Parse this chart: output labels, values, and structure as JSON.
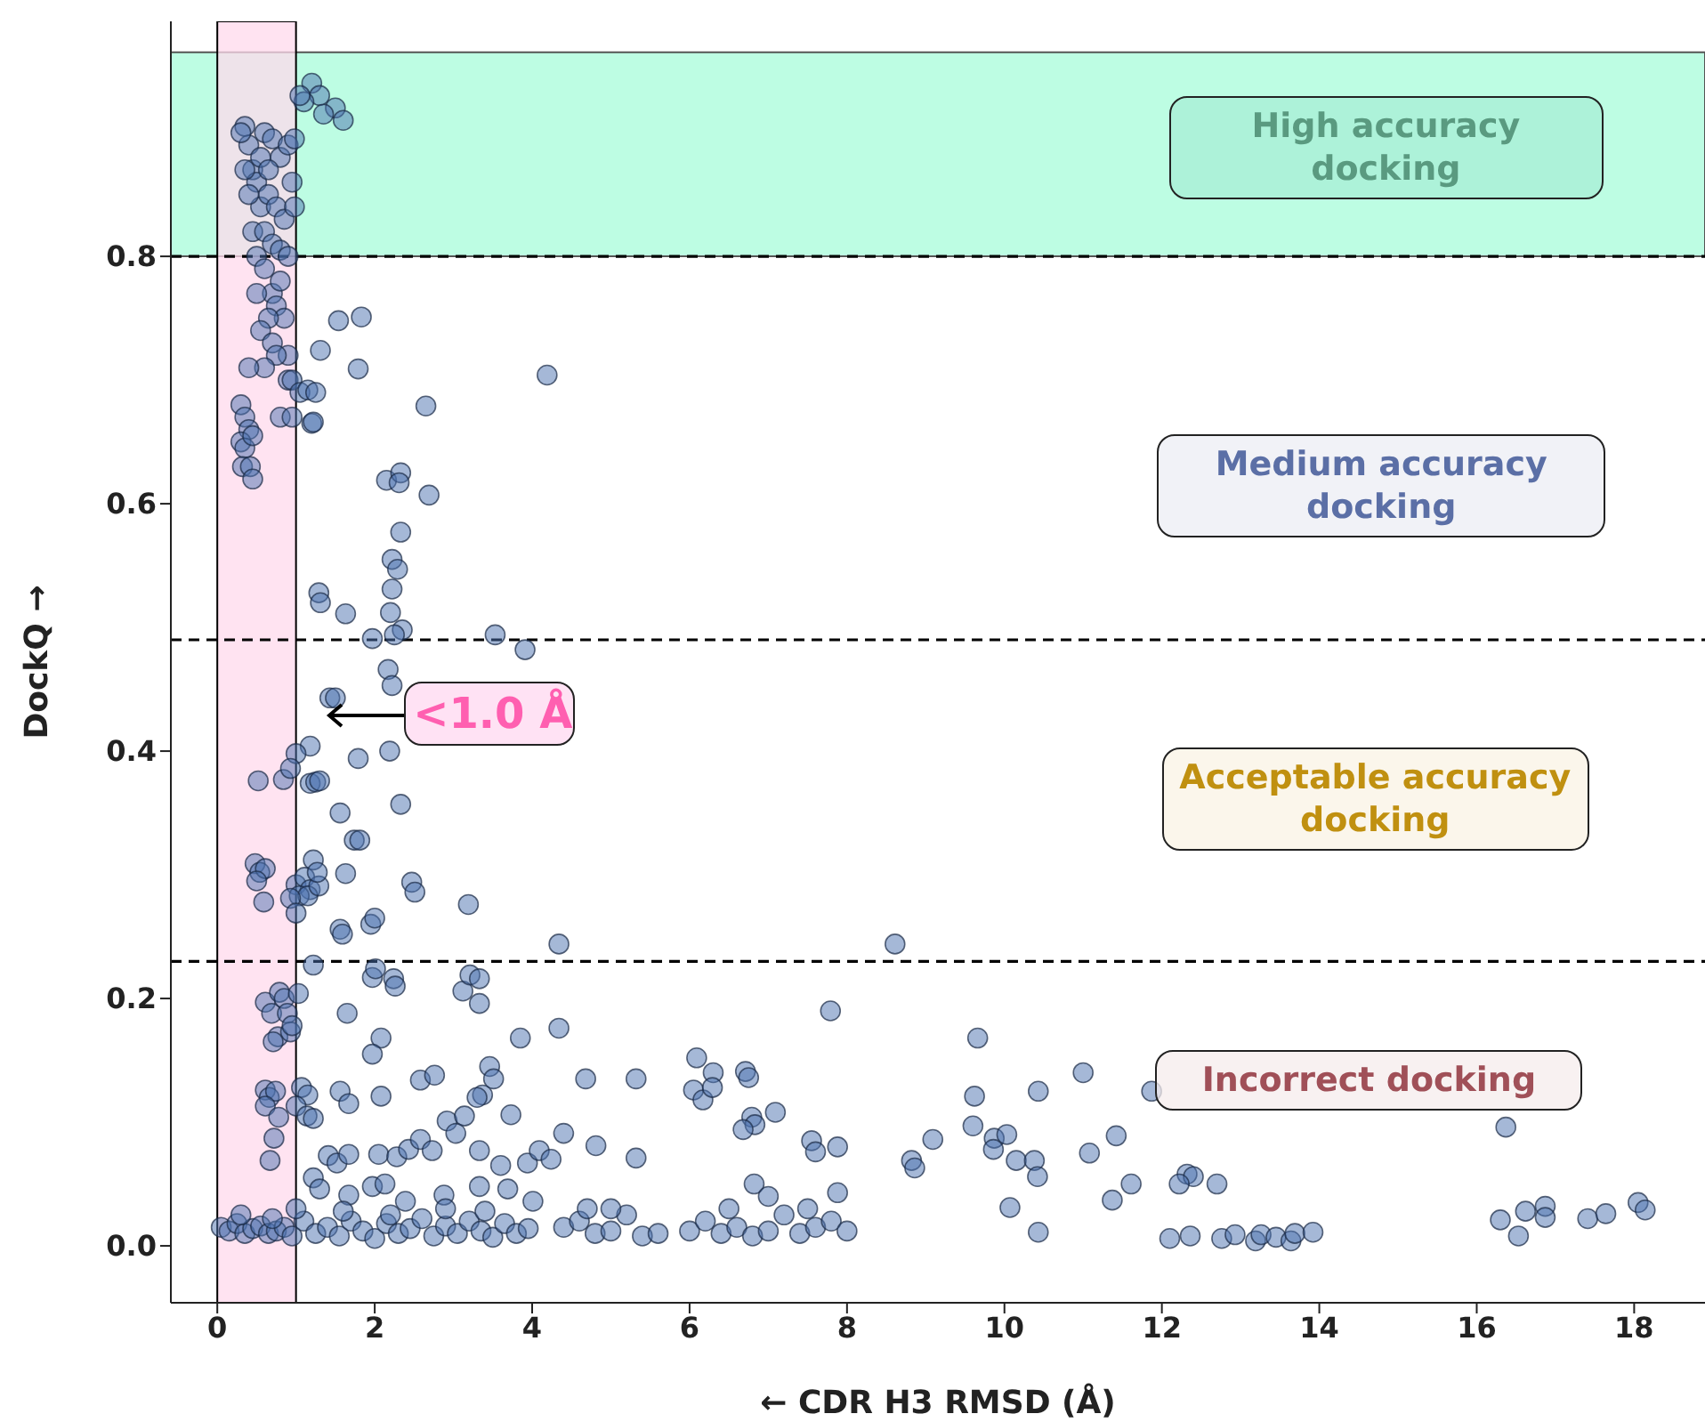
{
  "chart_data": {
    "type": "scatter",
    "xlabel": "← CDR H3 RMSD (Å)",
    "ylabel": "DockQ →",
    "xlim": [
      -0.59,
      18.9
    ],
    "ylim": [
      -0.046,
      0.99
    ],
    "xticks": [
      0,
      2,
      4,
      6,
      8,
      10,
      12,
      14,
      16,
      18
    ],
    "yticks": [
      {
        "value": 0,
        "label": "0.0"
      },
      {
        "value": 0.2,
        "label": "0.2"
      },
      {
        "value": 0.4,
        "label": "0.4"
      },
      {
        "value": 0.6,
        "label": "0.6"
      },
      {
        "value": 0.8,
        "label": "0.8"
      }
    ],
    "grid": false,
    "marker": "circle",
    "bands": [
      {
        "axis": "y",
        "from": 0.8,
        "to": 0.965,
        "color": "#bdfde3"
      },
      {
        "axis": "x",
        "from": 0,
        "to": 1,
        "color": "#ffd9ec"
      }
    ],
    "ref_lines": [
      {
        "axis": "y",
        "value": 0.8,
        "line_style": "dashed",
        "color": "#000000"
      },
      {
        "axis": "y",
        "value": 0.49,
        "line_style": "dashed",
        "color": "#000000"
      },
      {
        "axis": "y",
        "value": 0.23,
        "line_style": "dashed",
        "color": "#000000"
      }
    ],
    "annotations": [
      "High accuracy docking",
      "Medium accuracy docking",
      "Acceptable accuracy docking",
      "Incorrect docking",
      {
        "text": "<1.0 Å",
        "x": 1.38,
        "y": 0.429
      }
    ],
    "series": [
      {
        "color": "#4c72b0",
        "x": [
          0.35,
          0.4,
          0.3,
          0.45,
          0.6,
          0.7,
          0.8,
          0.9,
          0.5,
          0.55,
          0.65,
          0.75,
          0.85,
          0.95,
          0.45,
          0.6,
          0.7,
          0.8,
          0.5,
          0.9,
          0.4,
          0.55,
          0.65,
          0.35,
          0.98,
          0.98,
          1.2,
          1.3,
          1.1,
          1.5,
          1.6,
          1.35,
          1.05,
          0.6,
          0.7,
          0.75,
          0.8,
          0.85,
          0.65,
          0.55,
          0.7,
          0.9,
          0.5,
          0.75,
          0.6,
          0.9,
          0.95,
          0.4,
          1.05,
          0.3,
          0.35,
          0.4,
          0.3,
          0.35,
          0.45,
          0.32,
          0.42,
          0.45,
          0.8,
          0.95,
          1.2,
          1.54,
          1.83,
          1.31,
          1.79,
          4.19,
          2.65,
          1.15,
          1.25,
          1.22,
          2.15,
          2.33,
          2.31,
          2.69,
          2.33,
          2.22,
          2.29,
          2.22,
          1.29,
          1.31,
          1.63,
          2.2,
          2.35,
          2.25,
          1.97,
          3.53,
          3.91,
          2.17,
          2.22,
          1.43,
          1.5,
          1.18,
          1.79,
          2.19,
          1.0,
          0.52,
          0.84,
          0.93,
          1.18,
          1.25,
          1.3,
          2.33,
          1.56,
          1.74,
          1.81,
          1.63,
          0.48,
          0.54,
          0.61,
          0.5,
          0.59,
          1.0,
          1.11,
          1.18,
          1.04,
          1.15,
          1.29,
          1.22,
          0.93,
          1.0,
          1.27,
          2.47,
          2.51,
          3.19,
          1.56,
          1.59,
          1.95,
          2.0,
          1.22,
          1.97,
          2.01,
          2.24,
          2.26,
          3.12,
          3.21,
          3.33,
          3.33,
          1.65,
          0.61,
          0.69,
          0.79,
          0.85,
          0.89,
          0.77,
          0.93,
          0.71,
          0.95,
          1.03,
          2.08,
          1.97,
          3.85,
          4.34,
          4.34,
          2.58,
          2.76,
          3.46,
          3.51,
          3.37,
          3.3,
          3.73,
          0.61,
          0.66,
          0.74,
          0.61,
          0.78,
          0.72,
          0.67,
          1.07,
          1.15,
          1.0,
          1.14,
          1.22,
          2.08,
          1.56,
          1.67,
          1.41,
          1.52,
          1.67,
          2.05,
          2.28,
          2.43,
          2.58,
          2.73,
          2.92,
          3.03,
          3.14,
          3.33,
          3.6,
          3.94,
          4.09,
          4.24,
          1.22,
          1.3,
          1.67,
          1.97,
          2.13,
          2.39,
          2.88,
          3.33,
          3.69,
          4.01,
          0.05,
          0.15,
          0.25,
          0.35,
          0.45,
          0.55,
          0.65,
          0.75,
          0.85,
          0.95,
          1.1,
          1.25,
          1.4,
          1.55,
          1.7,
          1.85,
          2.0,
          2.15,
          2.3,
          2.45,
          2.6,
          2.75,
          2.9,
          3.05,
          3.2,
          3.35,
          3.5,
          3.65,
          3.8,
          3.95,
          1.0,
          1.6,
          2.2,
          2.9,
          3.4,
          0.3,
          0.7,
          8.61,
          7.79,
          9.66,
          4.68,
          5.32,
          6.09,
          6.3,
          6.05,
          6.17,
          6.29,
          6.71,
          6.75,
          6.79,
          6.83,
          6.68,
          7.09,
          9.62,
          10.43,
          11.0,
          4.4,
          4.81,
          5.32,
          7.55,
          7.6,
          7.88,
          6.82,
          7.88,
          8.82,
          8.86,
          9.09,
          9.6,
          9.87,
          9.86,
          10.03,
          10.15,
          10.38,
          10.42,
          11.08,
          11.42,
          11.37,
          10.07,
          10.43,
          4.4,
          4.6,
          4.8,
          5.0,
          5.2,
          5.4,
          5.6,
          6.0,
          6.2,
          6.4,
          6.6,
          6.8,
          7.0,
          7.2,
          7.4,
          7.6,
          7.8,
          8.0,
          6.5,
          7.0,
          7.5,
          4.7,
          5.0,
          11.87,
          11.61,
          12.32,
          12.4,
          12.22,
          12.7,
          12.1,
          12.36,
          12.76,
          12.93,
          13.19,
          13.26,
          13.45,
          13.64,
          13.69,
          13.92,
          16.37,
          16.3,
          16.53,
          16.62,
          16.87,
          16.87,
          17.41,
          17.64,
          18.05,
          18.14
        ],
        "values": [
          0.905,
          0.89,
          0.9,
          0.87,
          0.9,
          0.895,
          0.88,
          0.89,
          0.86,
          0.84,
          0.85,
          0.84,
          0.83,
          0.86,
          0.82,
          0.82,
          0.81,
          0.805,
          0.8,
          0.8,
          0.85,
          0.88,
          0.87,
          0.87,
          0.895,
          0.84,
          0.94,
          0.93,
          0.925,
          0.92,
          0.91,
          0.915,
          0.93,
          0.79,
          0.77,
          0.76,
          0.78,
          0.75,
          0.75,
          0.74,
          0.73,
          0.72,
          0.77,
          0.72,
          0.71,
          0.7,
          0.7,
          0.71,
          0.69,
          0.68,
          0.67,
          0.66,
          0.65,
          0.645,
          0.655,
          0.63,
          0.63,
          0.62,
          0.67,
          0.67,
          0.665,
          0.748,
          0.751,
          0.724,
          0.709,
          0.704,
          0.679,
          0.692,
          0.69,
          0.666,
          0.619,
          0.625,
          0.617,
          0.607,
          0.577,
          0.555,
          0.547,
          0.531,
          0.528,
          0.52,
          0.511,
          0.512,
          0.498,
          0.494,
          0.491,
          0.494,
          0.482,
          0.466,
          0.453,
          0.443,
          0.443,
          0.404,
          0.394,
          0.4,
          0.398,
          0.376,
          0.377,
          0.386,
          0.374,
          0.375,
          0.376,
          0.357,
          0.35,
          0.328,
          0.328,
          0.301,
          0.309,
          0.302,
          0.305,
          0.295,
          0.278,
          0.292,
          0.298,
          0.288,
          0.283,
          0.283,
          0.291,
          0.312,
          0.281,
          0.269,
          0.302,
          0.294,
          0.286,
          0.276,
          0.256,
          0.252,
          0.26,
          0.265,
          0.227,
          0.217,
          0.224,
          0.216,
          0.21,
          0.206,
          0.219,
          0.216,
          0.196,
          0.188,
          0.197,
          0.188,
          0.205,
          0.2,
          0.188,
          0.169,
          0.173,
          0.165,
          0.178,
          0.204,
          0.168,
          0.155,
          0.168,
          0.176,
          0.244,
          0.134,
          0.138,
          0.145,
          0.135,
          0.122,
          0.12,
          0.106,
          0.126,
          0.12,
          0.125,
          0.113,
          0.104,
          0.087,
          0.069,
          0.128,
          0.122,
          0.113,
          0.105,
          0.103,
          0.121,
          0.125,
          0.115,
          0.073,
          0.067,
          0.074,
          0.074,
          0.072,
          0.078,
          0.086,
          0.077,
          0.101,
          0.091,
          0.105,
          0.077,
          0.065,
          0.067,
          0.077,
          0.07,
          0.055,
          0.046,
          0.041,
          0.048,
          0.05,
          0.036,
          0.041,
          0.048,
          0.046,
          0.036,
          0.015,
          0.012,
          0.018,
          0.01,
          0.014,
          0.016,
          0.01,
          0.012,
          0.015,
          0.008,
          0.02,
          0.01,
          0.015,
          0.008,
          0.02,
          0.012,
          0.006,
          0.018,
          0.01,
          0.014,
          0.022,
          0.008,
          0.016,
          0.01,
          0.02,
          0.012,
          0.007,
          0.018,
          0.01,
          0.014,
          0.03,
          0.028,
          0.025,
          0.03,
          0.028,
          0.025,
          0.022,
          0.244,
          0.19,
          0.168,
          0.135,
          0.135,
          0.152,
          0.14,
          0.126,
          0.118,
          0.128,
          0.141,
          0.136,
          0.104,
          0.098,
          0.094,
          0.108,
          0.121,
          0.125,
          0.14,
          0.091,
          0.081,
          0.071,
          0.085,
          0.076,
          0.08,
          0.05,
          0.043,
          0.069,
          0.063,
          0.086,
          0.097,
          0.087,
          0.078,
          0.09,
          0.069,
          0.069,
          0.056,
          0.075,
          0.089,
          0.037,
          0.031,
          0.011,
          0.015,
          0.02,
          0.01,
          0.012,
          0.025,
          0.008,
          0.01,
          0.012,
          0.02,
          0.01,
          0.015,
          0.008,
          0.012,
          0.025,
          0.01,
          0.015,
          0.02,
          0.012,
          0.03,
          0.04,
          0.03,
          0.03,
          0.03,
          0.125,
          0.05,
          0.058,
          0.056,
          0.05,
          0.05,
          0.006,
          0.008,
          0.006,
          0.009,
          0.004,
          0.009,
          0.007,
          0.004,
          0.01,
          0.011,
          0.096,
          0.021,
          0.008,
          0.028,
          0.032,
          0.023,
          0.022,
          0.026,
          0.035,
          0.029
        ]
      }
    ]
  }
}
